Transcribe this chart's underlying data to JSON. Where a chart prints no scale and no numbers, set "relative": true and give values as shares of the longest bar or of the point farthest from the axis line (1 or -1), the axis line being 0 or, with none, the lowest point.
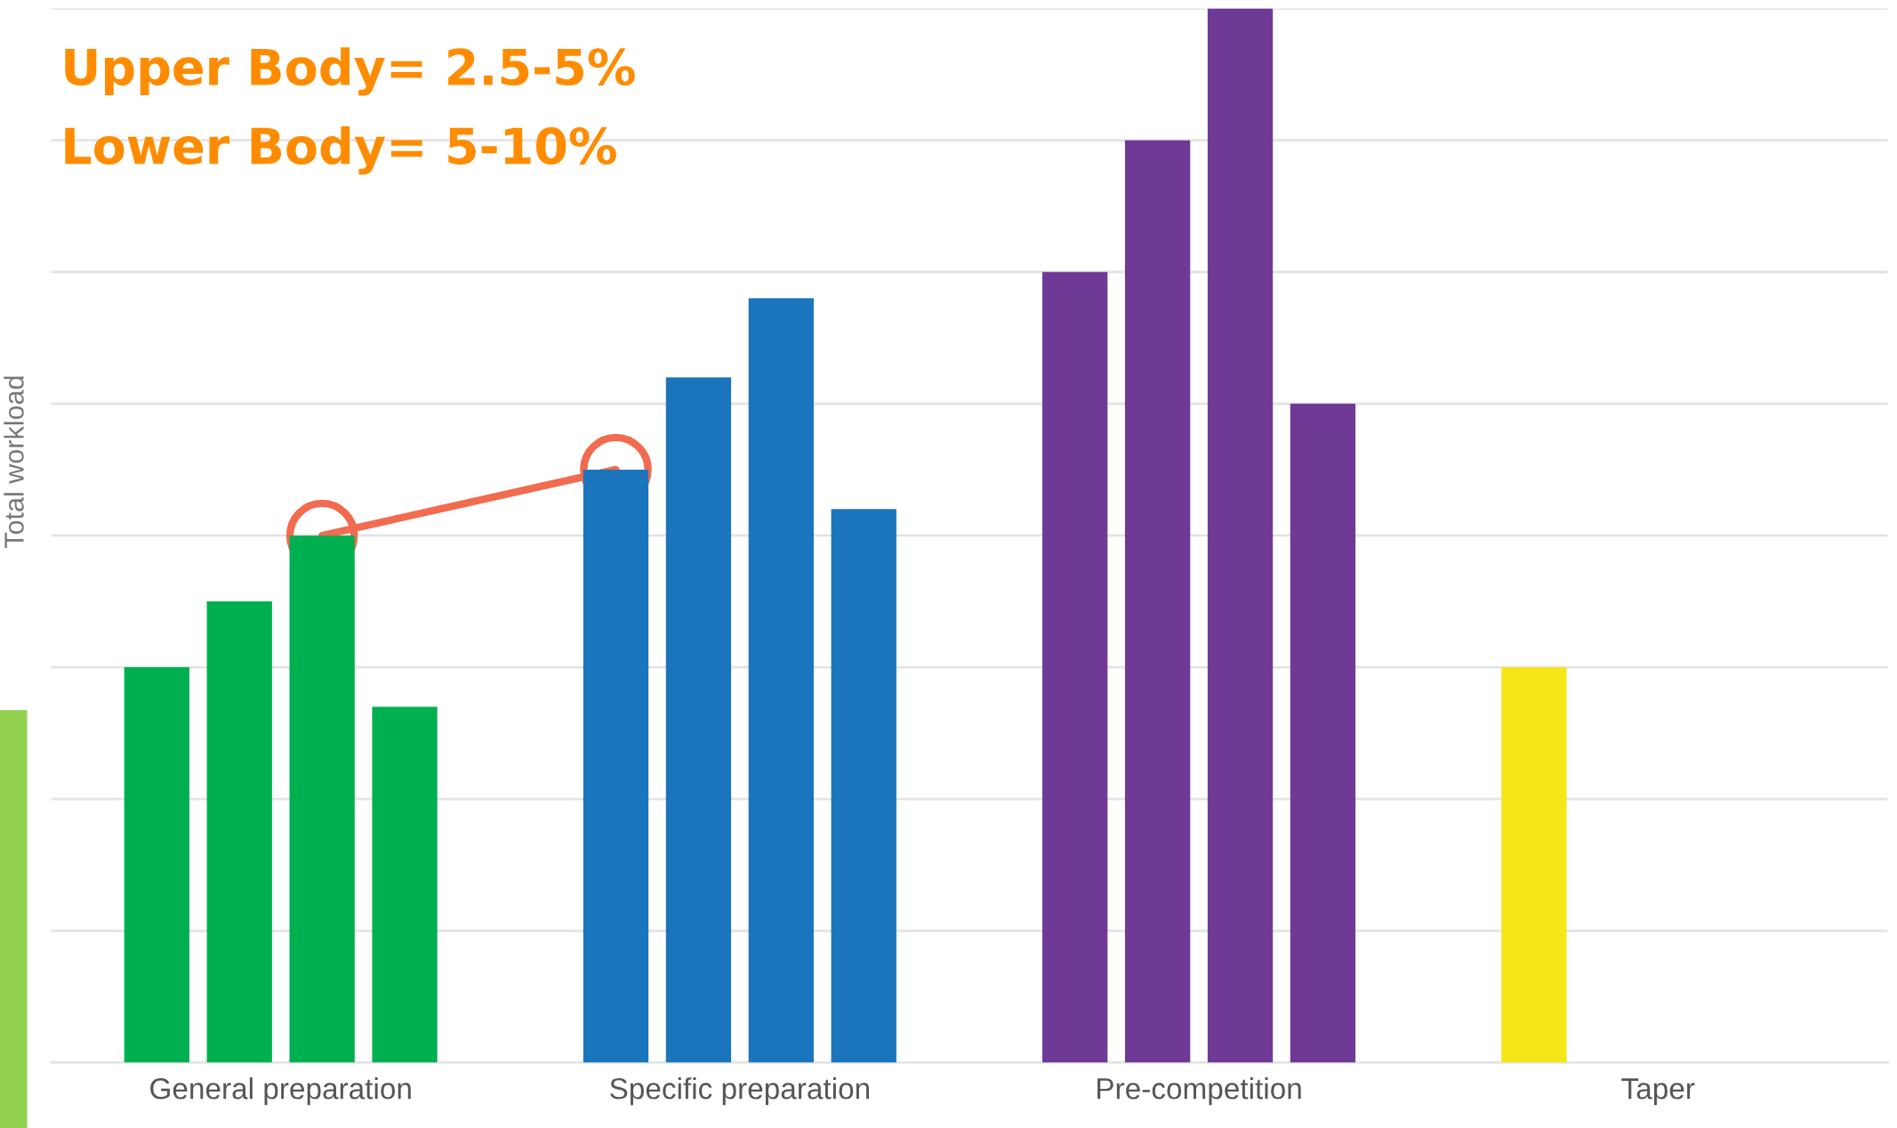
{
  "chart_data": {
    "type": "bar",
    "relative": true,
    "ylabel": "Total workload",
    "categories": [
      "General preparation",
      "Specific preparation",
      "Pre-competition",
      "Taper"
    ],
    "series": [
      {
        "colors": [
          "#00b050",
          "#1b75bc",
          "#6f3996",
          "#f5e617"
        ],
        "values": [
          0.375,
          0.5625,
          0.75,
          0.375
        ]
      },
      {
        "colors": [
          "#00b050",
          "#1b75bc",
          "#6f3996",
          "#f5e617"
        ],
        "values": [
          0.4375,
          0.65,
          0.875,
          null
        ]
      },
      {
        "colors": [
          "#00b050",
          "#1b75bc",
          "#6f3996",
          "#f5e617"
        ],
        "values": [
          0.5,
          0.725,
          1,
          null
        ]
      },
      {
        "colors": [
          "#00b050",
          "#1b75bc",
          "#6f3996",
          "#f5e617"
        ],
        "values": [
          0.3375,
          0.525,
          0.625,
          null
        ]
      }
    ],
    "annotations": [
      "Upper Body= 2.5-5%",
      "Lower Body= 5-10%"
    ],
    "grid": "y",
    "legend": false
  }
}
